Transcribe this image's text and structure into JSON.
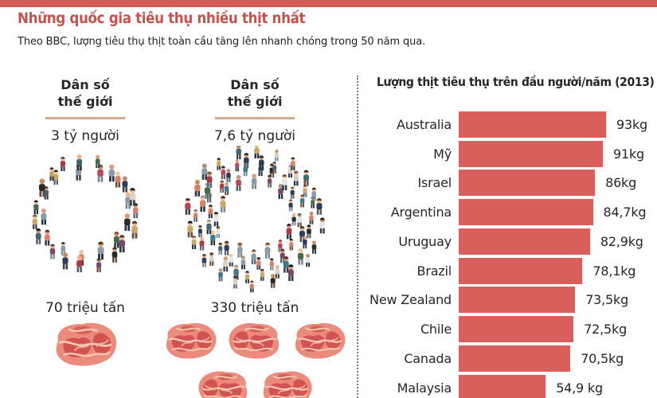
{
  "header": {
    "title": "Những quốc gia tiêu thụ nhiều thịt nhất",
    "subtitle": "Theo BBC, lượng tiêu thụ thịt toàn cầu tăng lên nhanh chóng trong 50 năm qua."
  },
  "colors": {
    "top_bar": "#d25954",
    "title_red": "#c4524e",
    "bar_fill": "#d95f5c",
    "rule_tan": "#d9a98c",
    "text_dark": "#262626"
  },
  "population_panels": [
    {
      "heading_line1": "Dân số",
      "heading_line2": "thế giới",
      "population": "3 tỷ người",
      "tonnage": "70 triệu tấn",
      "illustration": "people-circle",
      "meat_pieces": 1
    },
    {
      "heading_line1": "Dân số",
      "heading_line2": "thế giới",
      "population": "7,6 tỷ người",
      "tonnage": "330 triệu tấn",
      "illustration": "people-circle-dense",
      "meat_pieces": 5
    }
  ],
  "chart_data": {
    "type": "bar",
    "orientation": "horizontal",
    "title": "Lượng thịt tiêu thụ trên đầu người/năm (2013)",
    "unit": "kg",
    "categories": [
      "Australia",
      "Mỹ",
      "Israel",
      "Argentina",
      "Uruguay",
      "Brazil",
      "New Zealand",
      "Chile",
      "Canada",
      "Malaysia"
    ],
    "values": [
      93,
      91,
      86,
      84.7,
      82.9,
      78.1,
      73.5,
      72.5,
      70.5,
      54.9
    ],
    "value_labels": [
      "93kg",
      "91kg",
      "86kg",
      "84,7kg",
      "82,9kg",
      "78,1kg",
      "73,5kg",
      "72,5kg",
      "70,5kg",
      "54,9 kg"
    ],
    "xlim": [
      0,
      100
    ],
    "bar_color": "#d95f5c",
    "grid": false,
    "legend": false
  }
}
